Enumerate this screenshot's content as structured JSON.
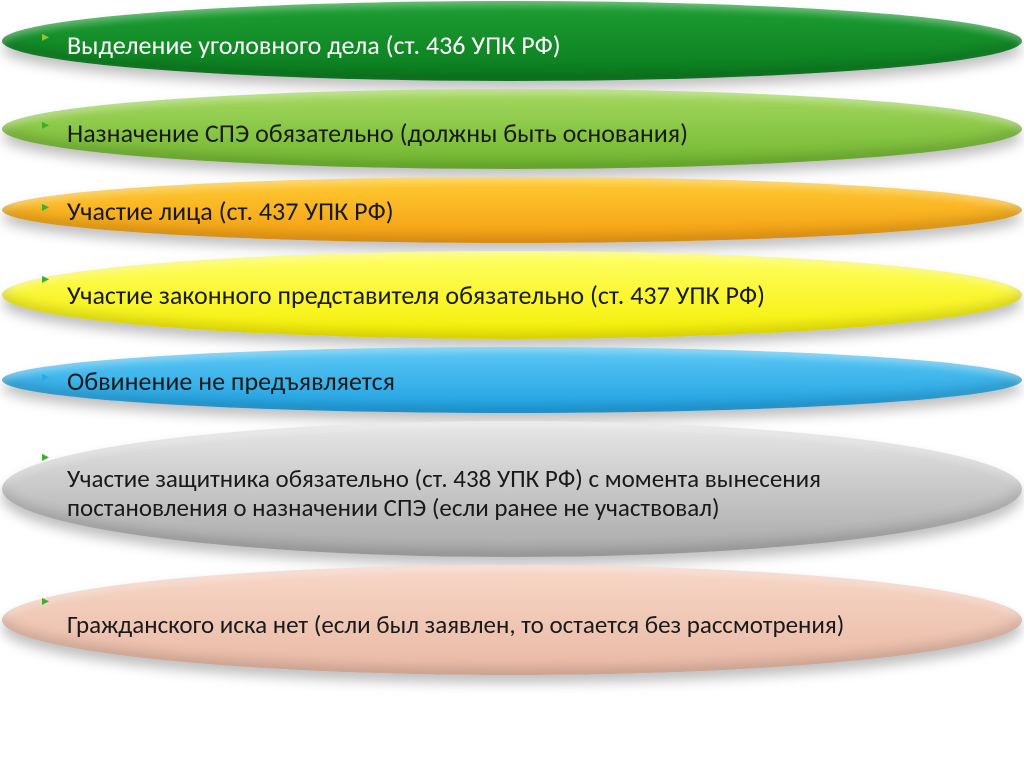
{
  "items": [
    {
      "text": "Выделение уголовного дела (ст. 436 УПК РФ)",
      "bg_top": "#1ea034",
      "bg_bottom": "#0a7a1e",
      "text_color": "#ffffff",
      "bullet_color": "#8cc63f",
      "font_size": 26,
      "padding_top": 22,
      "cls": "e1"
    },
    {
      "text": "Назначение СПЭ обязательно (должны быть основания)",
      "bg_top": "#a6d960",
      "bg_bottom": "#6fb52e",
      "text_color": "#1a1a1a",
      "bullet_color": "#3dae2b",
      "font_size": 26,
      "padding_top": 22,
      "cls": "e2"
    },
    {
      "text": "Участие лица (ст. 437 УПК РФ)",
      "bg_top": "#ffcc33",
      "bg_bottom": "#f39c12",
      "text_color": "#1a1a1a",
      "bullet_color": "#3dae2b",
      "font_size": 26,
      "padding_top": 16,
      "cls": "e3"
    },
    {
      "text": "Участие законного представителя обязательно (ст. 437 УПК РФ)",
      "bg_top": "#ffff66",
      "bg_bottom": "#f4ee00",
      "text_color": "#1a1a1a",
      "bullet_color": "#3dae2b",
      "font_size": 26,
      "padding_top": 14,
      "cls": "e4"
    },
    {
      "text": "Обвинение не предъявляется",
      "bg_top": "#5cc9f5",
      "bg_bottom": "#1e9fe0",
      "text_color": "#1a1a1a",
      "bullet_color": "#29abe2",
      "font_size": 26,
      "padding_top": 16,
      "cls": "e5"
    },
    {
      "text": "Участие защитника обязательно (ст. 438 УПК РФ)  с момента вынесения постановления о назначении СПЭ (если ранее не участвовал)",
      "bg_top": "#e8e8e8",
      "bg_bottom": "#a8a8a8",
      "text_color": "#1a1a1a",
      "bullet_color": "#3dae2b",
      "font_size": 25,
      "padding_top": 22,
      "cls": "e6"
    },
    {
      "text": "Гражданского иска нет (если был заявлен, то остается без рассмотрения)",
      "bg_top": "#f8d7c7",
      "bg_bottom": "#e8b8a4",
      "text_color": "#1a1a1a",
      "bullet_color": "#3dae2b",
      "font_size": 25,
      "padding_top": 22,
      "cls": "e7"
    }
  ],
  "bullet_char": "▸"
}
